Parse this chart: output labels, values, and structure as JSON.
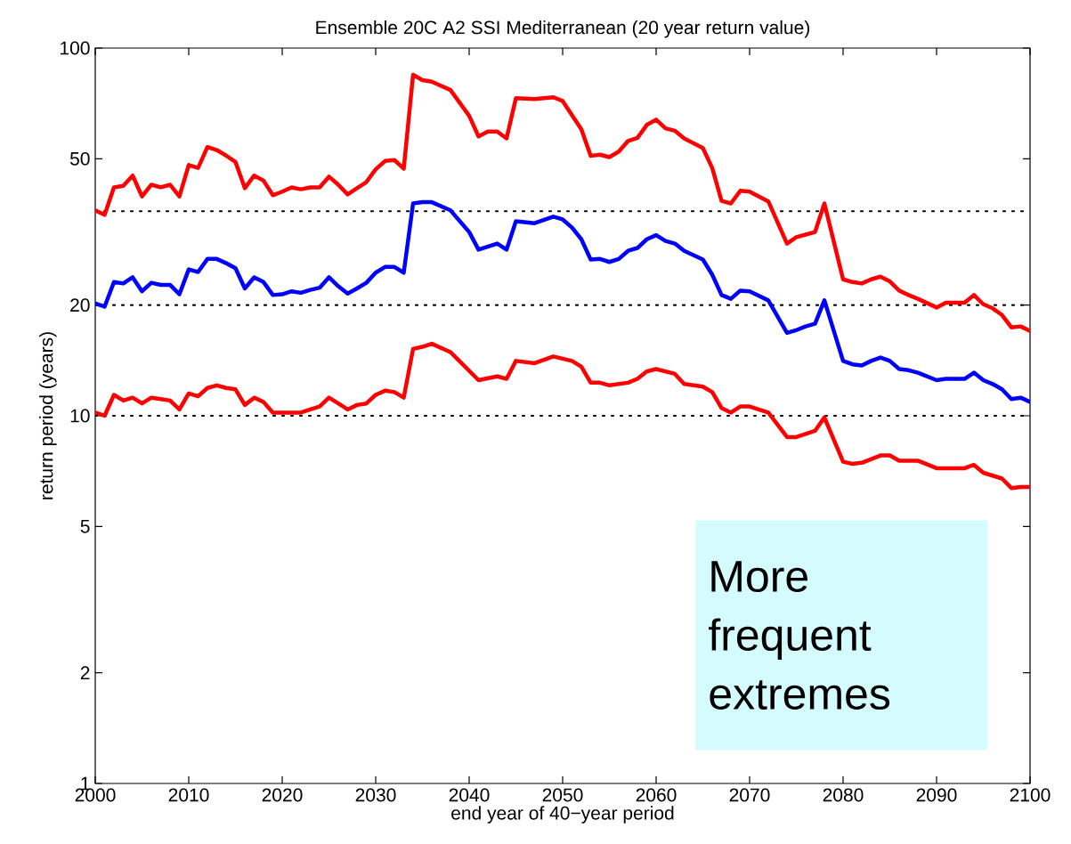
{
  "chart_data": {
    "type": "line",
    "title": "Ensemble 20C A2 SSI Mediterranean (20 year return value)",
    "xlabel": "end year of 40−year period",
    "ylabel": "return period (years)",
    "log": "y",
    "xlim": [
      2000,
      2100
    ],
    "ylim": [
      1,
      100
    ],
    "xticks": [
      2000,
      2010,
      2020,
      2030,
      2040,
      2050,
      2060,
      2070,
      2080,
      2090,
      2100
    ],
    "yticks": [
      1,
      2,
      5,
      10,
      20,
      50,
      100
    ],
    "line_style": "solid",
    "marker": "none",
    "series": [
      {
        "color": "#ff0000",
        "x": [
          2000,
          2001,
          2002,
          2003,
          2004,
          2005,
          2006,
          2007,
          2008,
          2009,
          2010,
          2011,
          2012,
          2013,
          2014,
          2015,
          2016,
          2017,
          2018,
          2019,
          2020,
          2021,
          2022,
          2023,
          2024,
          2025,
          2026,
          2027,
          2028,
          2029,
          2030,
          2031,
          2032,
          2033,
          2034,
          2035,
          2036,
          2038,
          2040,
          2041,
          2042,
          2043,
          2044,
          2045,
          2047,
          2049,
          2050,
          2052,
          2053,
          2054,
          2055,
          2056,
          2057,
          2058,
          2059,
          2060,
          2061,
          2062,
          2063,
          2065,
          2066,
          2067,
          2068,
          2069,
          2070,
          2072,
          2074,
          2075,
          2076,
          2077,
          2078,
          2080,
          2081,
          2082,
          2083,
          2084,
          2085,
          2086,
          2087,
          2088,
          2090,
          2091,
          2093,
          2094,
          2095,
          2096,
          2097,
          2098,
          2099,
          2100
        ],
        "values": [
          36.2,
          35.2,
          41.8,
          42.2,
          45,
          39.5,
          42.5,
          41.8,
          42.5,
          39.5,
          48.1,
          47.2,
          53.8,
          52.8,
          51,
          49,
          41.6,
          45,
          43.6,
          39.8,
          40.7,
          41.8,
          41.3,
          41.8,
          41.8,
          44.7,
          42.5,
          40,
          41.6,
          43.2,
          46.8,
          49.3,
          49.6,
          47,
          84.6,
          81.8,
          81,
          76.9,
          65.4,
          57.5,
          59.3,
          59.3,
          56.8,
          73.1,
          72.7,
          73.5,
          71.8,
          60.1,
          50.9,
          51.3,
          50.5,
          52.3,
          55.9,
          57,
          61.8,
          63.9,
          60.5,
          59.6,
          56.8,
          53.5,
          47.2,
          38.4,
          37.8,
          40.9,
          40.7,
          38.3,
          29.4,
          30.6,
          31.1,
          31.6,
          37.8,
          23.5,
          23.1,
          22.9,
          23.5,
          23.9,
          23.2,
          21.9,
          21.3,
          20.8,
          19.7,
          20.3,
          20.3,
          21.3,
          20.1,
          19.6,
          18.8,
          17.4,
          17.5,
          17
        ]
      },
      {
        "color": "#0000ff",
        "x": [
          2000,
          2001,
          2002,
          2003,
          2004,
          2005,
          2006,
          2007,
          2008,
          2009,
          2010,
          2011,
          2012,
          2013,
          2014,
          2015,
          2016,
          2017,
          2018,
          2019,
          2020,
          2021,
          2022,
          2023,
          2024,
          2025,
          2026,
          2027,
          2028,
          2029,
          2030,
          2031,
          2032,
          2033,
          2034,
          2035,
          2036,
          2038,
          2040,
          2041,
          2043,
          2044,
          2045,
          2047,
          2049,
          2050,
          2051,
          2052,
          2053,
          2054,
          2055,
          2056,
          2057,
          2058,
          2059,
          2060,
          2061,
          2062,
          2063,
          2065,
          2066,
          2067,
          2068,
          2069,
          2070,
          2072,
          2074,
          2075,
          2076,
          2077,
          2078,
          2080,
          2081,
          2082,
          2083,
          2084,
          2085,
          2086,
          2087,
          2088,
          2090,
          2091,
          2093,
          2094,
          2095,
          2096,
          2097,
          2098,
          2099,
          2100
        ],
        "values": [
          20.2,
          19.8,
          23.1,
          22.9,
          23.8,
          21.8,
          23,
          22.7,
          22.7,
          21.4,
          25,
          24.6,
          26.7,
          26.7,
          26,
          25.2,
          22.2,
          23.8,
          23.1,
          21.3,
          21.4,
          21.8,
          21.6,
          22,
          22.3,
          23.8,
          22.5,
          21.5,
          22.2,
          23,
          24.5,
          25.4,
          25.4,
          24.5,
          37.8,
          38.1,
          38.1,
          36.2,
          31.6,
          28.3,
          29.4,
          28.3,
          33.8,
          33.4,
          34.8,
          34.2,
          32.5,
          30.2,
          26.6,
          26.7,
          26.2,
          26.7,
          28.1,
          28.6,
          30.2,
          31,
          29.9,
          29.4,
          28.1,
          26.6,
          24.2,
          21.3,
          20.8,
          21.9,
          21.8,
          20.6,
          16.8,
          17.1,
          17.5,
          17.8,
          20.6,
          14.1,
          13.8,
          13.7,
          14.1,
          14.4,
          14.1,
          13.4,
          13.3,
          13.1,
          12.5,
          12.6,
          12.6,
          13.1,
          12.5,
          12.2,
          11.8,
          11.1,
          11.2,
          10.9
        ]
      },
      {
        "color": "#ff0000",
        "x": [
          2000,
          2001,
          2002,
          2003,
          2004,
          2005,
          2006,
          2007,
          2008,
          2009,
          2010,
          2011,
          2012,
          2013,
          2014,
          2015,
          2016,
          2017,
          2018,
          2019,
          2020,
          2021,
          2022,
          2023,
          2024,
          2025,
          2026,
          2027,
          2028,
          2029,
          2030,
          2031,
          2032,
          2033,
          2034,
          2035,
          2036,
          2038,
          2041,
          2043,
          2044,
          2045,
          2047,
          2049,
          2051,
          2052,
          2053,
          2054,
          2055,
          2057,
          2058,
          2059,
          2060,
          2062,
          2063,
          2065,
          2066,
          2067,
          2068,
          2069,
          2070,
          2072,
          2074,
          2075,
          2077,
          2078,
          2080,
          2081,
          2082,
          2084,
          2085,
          2086,
          2088,
          2090,
          2093,
          2094,
          2095,
          2097,
          2098,
          2099,
          2100
        ],
        "values": [
          10.2,
          10,
          11.4,
          11,
          11.2,
          10.8,
          11.2,
          11.1,
          11,
          10.4,
          11.5,
          11.3,
          11.9,
          12.1,
          11.9,
          11.8,
          10.7,
          11.2,
          10.9,
          10.2,
          10.2,
          10.2,
          10.2,
          10.4,
          10.6,
          11.2,
          10.8,
          10.4,
          10.7,
          10.8,
          11.4,
          11.7,
          11.6,
          11.2,
          15.2,
          15.4,
          15.7,
          14.9,
          12.5,
          12.8,
          12.6,
          14.1,
          13.9,
          14.5,
          14.1,
          13.6,
          12.3,
          12.3,
          12.1,
          12.3,
          12.6,
          13.2,
          13.4,
          13,
          12.2,
          12,
          11.6,
          10.5,
          10.2,
          10.6,
          10.6,
          10.2,
          8.75,
          8.75,
          9.1,
          9.9,
          7.5,
          7.4,
          7.45,
          7.8,
          7.8,
          7.55,
          7.55,
          7.2,
          7.2,
          7.35,
          7,
          6.75,
          6.36,
          6.4,
          6.4
        ]
      }
    ],
    "ref_lines": [
      {
        "axis": "y",
        "value": 36,
        "color": "#000000",
        "line_style": "dotted"
      },
      {
        "axis": "y",
        "value": 20,
        "color": "#000000",
        "line_style": "dotted"
      },
      {
        "axis": "y",
        "value": 10,
        "color": "#000000",
        "line_style": "dotted"
      }
    ],
    "annotations": [
      "More frequent extremes"
    ]
  }
}
